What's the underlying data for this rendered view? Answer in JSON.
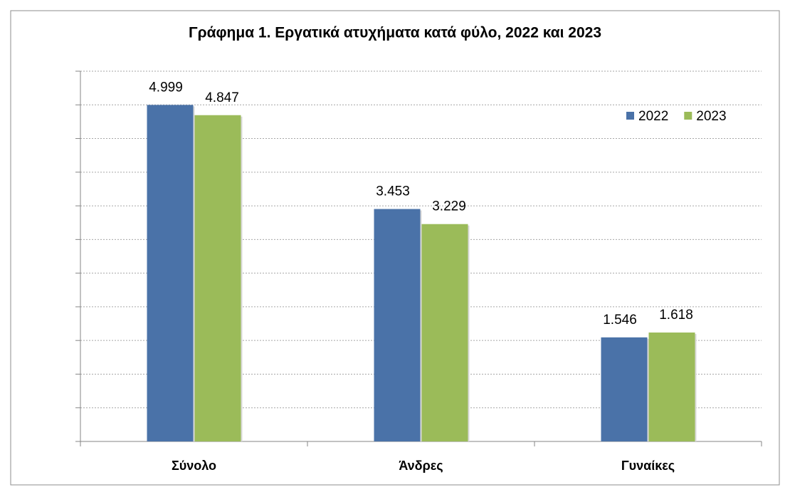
{
  "chart_data": {
    "type": "bar",
    "title": "Γράφημα 1. Εργατικά ατυχήματα κατά φύλο, 2022 και 2023",
    "categories": [
      "Σύνολο",
      "Άνδρες",
      "Γυναίκες"
    ],
    "series": [
      {
        "name": "2022",
        "color": "#4a72a8",
        "values": [
          4999,
          3453,
          1546
        ],
        "value_labels": [
          "4.999",
          "3.453",
          "1.546"
        ]
      },
      {
        "name": "2023",
        "color": "#9bbb59",
        "values": [
          4847,
          3229,
          1618
        ],
        "value_labels": [
          "4.847",
          "3.229",
          "1.618"
        ]
      }
    ],
    "ylim": [
      0,
      5500
    ],
    "yticks": [
      0,
      500,
      1000,
      1500,
      2000,
      2500,
      3000,
      3500,
      4000,
      4500,
      5000,
      5500
    ],
    "grid": true,
    "legend": "top-right"
  }
}
